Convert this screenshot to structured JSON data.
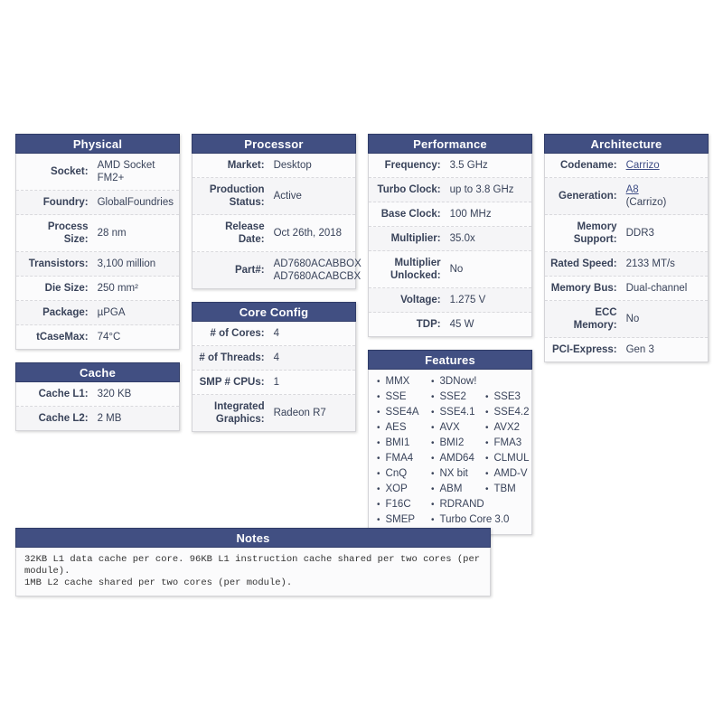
{
  "colors": {
    "header_bg": "#414f82",
    "header_text": "#ffffff",
    "body_text": "#39435a",
    "link": "#3f4e86",
    "page_bg": "#ffffff"
  },
  "tables": {
    "physical": {
      "title": "Physical",
      "rows": [
        {
          "label": "Socket:",
          "value": "AMD Socket FM2+"
        },
        {
          "label": "Foundry:",
          "value": "GlobalFoundries"
        },
        {
          "label": "Process Size:",
          "value": "28 nm"
        },
        {
          "label": "Transistors:",
          "value": "3,100 million"
        },
        {
          "label": "Die Size:",
          "value": "250 mm²"
        },
        {
          "label": "Package:",
          "value": "µPGA"
        },
        {
          "label": "tCaseMax:",
          "value": "74°C"
        }
      ]
    },
    "cache": {
      "title": "Cache",
      "rows": [
        {
          "label": "Cache L1:",
          "value": "320 KB"
        },
        {
          "label": "Cache L2:",
          "value": "2 MB"
        }
      ]
    },
    "processor": {
      "title": "Processor",
      "rows": [
        {
          "label": "Market:",
          "value": "Desktop"
        },
        {
          "label": "Production Status:",
          "value": "Active"
        },
        {
          "label": "Release Date:",
          "value": "Oct 26th, 2018"
        },
        {
          "label": "Part#:",
          "value_lines": [
            "AD7680ACABBOX",
            "AD7680ACABCBX"
          ]
        }
      ]
    },
    "core_config": {
      "title": "Core Config",
      "rows": [
        {
          "label": "# of Cores:",
          "value": "4"
        },
        {
          "label": "# of Threads:",
          "value": "4"
        },
        {
          "label": "SMP # CPUs:",
          "value": "1"
        },
        {
          "label": "Integrated Graphics:",
          "value": "Radeon R7"
        }
      ]
    },
    "performance": {
      "title": "Performance",
      "rows": [
        {
          "label": "Frequency:",
          "value": "3.5 GHz"
        },
        {
          "label": "Turbo Clock:",
          "value": "up to 3.8 GHz"
        },
        {
          "label": "Base Clock:",
          "value": "100 MHz"
        },
        {
          "label": "Multiplier:",
          "value": "35.0x"
        },
        {
          "label": "Multiplier Unlocked:",
          "value": "No"
        },
        {
          "label": "Voltage:",
          "value": "1.275 V"
        },
        {
          "label": "TDP:",
          "value": "45 W"
        }
      ]
    },
    "architecture": {
      "title": "Architecture",
      "rows": [
        {
          "label": "Codename:",
          "value": "Carrizo",
          "link": true
        },
        {
          "label": "Generation:",
          "value": "A8",
          "link": true,
          "suffix": "(Carrizo)"
        },
        {
          "label": "Memory Support:",
          "value": "DDR3"
        },
        {
          "label": "Rated Speed:",
          "value": "2133 MT/s"
        },
        {
          "label": "Memory Bus:",
          "value": "Dual-channel"
        },
        {
          "label": "ECC Memory:",
          "value": "No"
        },
        {
          "label": "PCI-Express:",
          "value": "Gen 3"
        }
      ]
    },
    "features": {
      "title": "Features",
      "items": [
        "MMX",
        "3DNow!",
        "SSE",
        "SSE2",
        "SSE3",
        "SSE4A",
        "SSE4.1",
        "SSE4.2",
        "AES",
        "AVX",
        "AVX2",
        "BMI1",
        "BMI2",
        "FMA3",
        "FMA4",
        "AMD64",
        "CLMUL",
        "CnQ",
        "NX bit",
        "AMD-V",
        "XOP",
        "ABM",
        "TBM",
        "F16C",
        "RDRAND",
        "SMEP",
        "Turbo Core 3.0"
      ]
    },
    "notes": {
      "title": "Notes",
      "lines": [
        "32KB L1 data cache per core. 96KB L1 instruction cache shared per two cores (per module).",
        "1MB L2 cache shared per two cores (per module)."
      ]
    }
  }
}
